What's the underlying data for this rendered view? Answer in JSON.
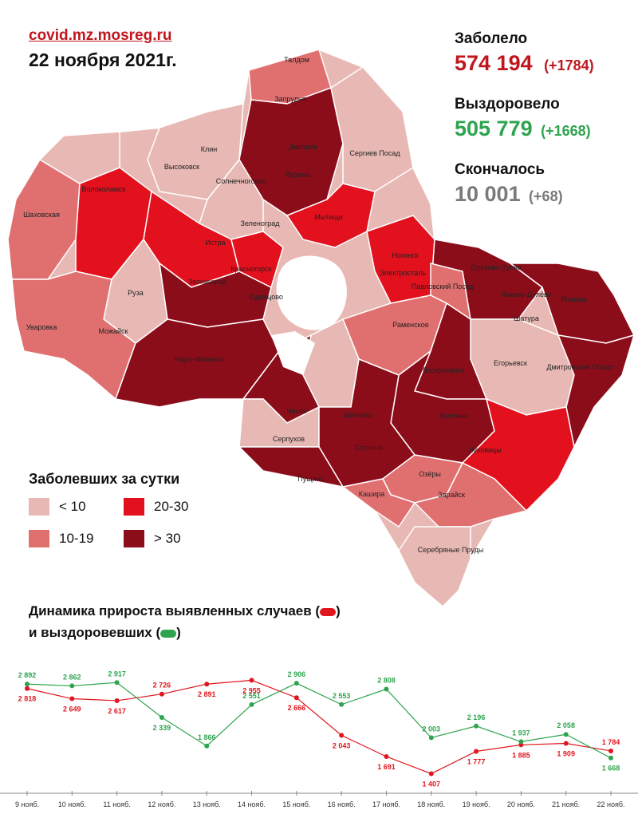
{
  "header": {
    "site": "covid.mz.mosreg.ru",
    "date": "22 ноября 2021г."
  },
  "stats": {
    "infected_label": "Заболело",
    "infected_value": "574 194",
    "infected_delta": "(+1784)",
    "recovered_label": "Выздоровело",
    "recovered_value": "505 779",
    "recovered_delta": "(+1668)",
    "deaths_label": "Скончалось",
    "deaths_value": "10 001",
    "deaths_delta": "(+68)"
  },
  "map": {
    "city_labels": [
      "Талдом",
      "Запрудня",
      "Дмитров",
      "Сергиев Посад",
      "Клин",
      "Высоковск",
      "Солнечногорск",
      "Яхрома",
      "Волоколамск",
      "Шаховская",
      "Зеленоград",
      "Мытищи",
      "Истра",
      "Ногинск",
      "Электросталь",
      "Орехово-Зуево",
      "Красногорск",
      "Павловский Посад",
      "Ликино-Дулёво",
      "Руза",
      "Звенигород",
      "Одинцово",
      "Рошаль",
      "Уваровка",
      "Можайск",
      "Шатура",
      "Раменское",
      "Наро-Фоминск",
      "Егорьевск",
      "Воскресенск",
      "Дмитровский Погост",
      "Чехов",
      "Коломна",
      "Михнево",
      "Луховицы",
      "Серпухов",
      "Ступино",
      "Пущино",
      "Озёры",
      "Кашира",
      "Зарайск",
      "Серебряные Пруды"
    ]
  },
  "legend": {
    "title": "Заболевших за сутки",
    "items": [
      {
        "label": "< 10",
        "color": "#e8b9b4"
      },
      {
        "label": "20-30",
        "color": "#e3101e"
      },
      {
        "label": "10-19",
        "color": "#e07070"
      },
      {
        "label": "> 30",
        "color": "#8b0d1a"
      }
    ]
  },
  "dynamics": {
    "title_line1": "Динамика прироста выявленных случаев (",
    "title_line1_end": ")",
    "title_line2": "и выздоровевших (",
    "title_line2_end": ")"
  },
  "chart_data": {
    "type": "line",
    "categories": [
      "9 нояб.",
      "10 нояб.",
      "11 нояб.",
      "12 нояб.",
      "13 нояб.",
      "14 нояб.",
      "15 нояб.",
      "16 нояб.",
      "17 нояб.",
      "18 нояб.",
      "19 нояб.",
      "20 нояб.",
      "21 нояб.",
      "22 нояб."
    ],
    "series": [
      {
        "color": "#e0161e",
        "values": [
          2818,
          2649,
          2617,
          2726,
          2891,
          2955,
          2666,
          2043,
          1691,
          1407,
          1777,
          1885,
          1909,
          1784
        ],
        "labels": [
          "2 818",
          "2 649",
          "2 617",
          "2 726",
          "2 891",
          "2 955",
          "2 666",
          "2 043",
          "1 691",
          "1 407",
          "1 777",
          "1 885",
          "1 909",
          "1 784"
        ]
      },
      {
        "color": "#2ea44f",
        "values": [
          2892,
          2862,
          2917,
          2339,
          1866,
          2551,
          2906,
          2553,
          2808,
          2003,
          2196,
          1937,
          2058,
          1668
        ],
        "labels": [
          "2 892",
          "2 862",
          "2 917",
          "2 339",
          "1 866",
          "2 551",
          "2 906",
          "2 553",
          "2 808",
          "2 003",
          "2 196",
          "1 937",
          "2 058",
          "1 668"
        ]
      }
    ],
    "grid": false
  }
}
